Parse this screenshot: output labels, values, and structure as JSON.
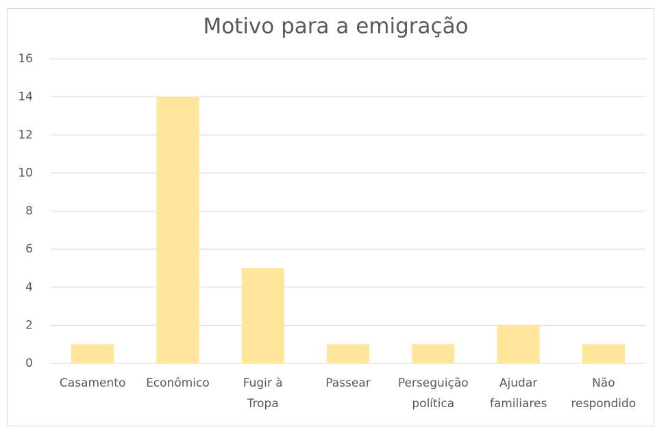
{
  "chart_data": {
    "type": "bar",
    "title": "Motivo para a emigração",
    "categories": [
      [
        "Casamento"
      ],
      [
        "Econômico"
      ],
      [
        "Fugir à",
        "Tropa"
      ],
      [
        "Passear"
      ],
      [
        "Perseguição",
        "política"
      ],
      [
        "Ajudar",
        "familiares"
      ],
      [
        "Não",
        "respondido"
      ]
    ],
    "values": [
      1,
      14,
      5,
      1,
      1,
      2,
      1
    ],
    "color": "#ffe699",
    "ylim": [
      0,
      16
    ],
    "yticks": [
      0,
      2,
      4,
      6,
      8,
      10,
      12,
      14,
      16
    ],
    "grid": true
  }
}
